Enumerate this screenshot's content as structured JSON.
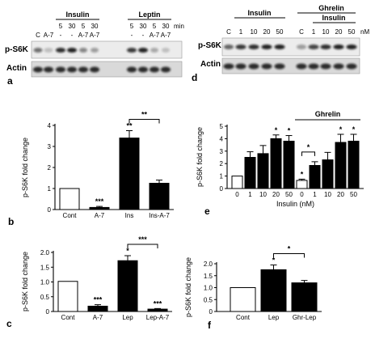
{
  "blots": {
    "a": {
      "panel_letter": "a",
      "groups": [
        {
          "label": "Insulin"
        },
        {
          "label": "Leptin"
        }
      ],
      "conc_row": [
        "5",
        "30",
        "5",
        "30",
        "5",
        "30",
        "5",
        "30"
      ],
      "treat_row": [
        "C",
        "A-7",
        "-",
        "-",
        "A-7",
        "A-7",
        "-",
        "-",
        "A-7",
        "A-7"
      ],
      "unit": "min",
      "rows": [
        "p-S6K",
        "Actin"
      ]
    },
    "d": {
      "panel_letter": "d",
      "groups": [
        {
          "label": "Insulin"
        },
        {
          "label": "Ghrelin"
        },
        {
          "label": "Insulin"
        }
      ],
      "conc_row": [
        "C",
        "1",
        "10",
        "20",
        "50",
        "C",
        "1",
        "10",
        "20",
        "50"
      ],
      "unit": "nM",
      "rows": [
        "p-S6K",
        "Actin"
      ]
    }
  },
  "chart_data": [
    {
      "panel": "b",
      "type": "bar",
      "ylabel": "p-S6K fold change",
      "ylim": [
        0,
        4
      ],
      "yticks": [
        "0",
        "1",
        "2",
        "3",
        "4"
      ],
      "categories": [
        "Cont",
        "A-7",
        "Ins",
        "Ins-A-7"
      ],
      "values": [
        1.0,
        0.1,
        3.4,
        1.25
      ],
      "errors": [
        0,
        0.05,
        0.35,
        0.15
      ],
      "fills": [
        "white",
        "black",
        "black",
        "black"
      ],
      "stars": [
        "",
        "***",
        "**",
        ""
      ],
      "bracket": {
        "from": 2,
        "to": 3,
        "label": "**"
      }
    },
    {
      "panel": "c",
      "type": "bar",
      "ylabel": "p-S6K fold change",
      "ylim": [
        0,
        2.0
      ],
      "yticks": [
        "0",
        "0.5",
        "1.0",
        "1.5",
        "2.0"
      ],
      "categories": [
        "Cont",
        "A-7",
        "Lep",
        "Lep-A-7"
      ],
      "values": [
        1.02,
        0.18,
        1.72,
        0.08
      ],
      "errors": [
        0,
        0.05,
        0.17,
        0.02
      ],
      "fills": [
        "white",
        "black",
        "black",
        "black"
      ],
      "stars": [
        "",
        "***",
        "*",
        "***"
      ],
      "bracket": {
        "from": 2,
        "to": 3,
        "label": "***"
      }
    },
    {
      "panel": "e",
      "type": "bar",
      "ylabel": "p-S6K fold change",
      "xlabel": "Insulin (nM)",
      "group_label": "Ghrelin",
      "ylim": [
        0,
        5
      ],
      "yticks": [
        "0",
        "1",
        "2",
        "3",
        "4",
        "5"
      ],
      "categories": [
        "0",
        "1",
        "10",
        "20",
        "50",
        "0",
        "1",
        "10",
        "20",
        "50"
      ],
      "values": [
        1.0,
        2.5,
        2.8,
        4.0,
        3.8,
        0.65,
        1.85,
        2.3,
        3.7,
        3.8
      ],
      "errors": [
        0,
        0.45,
        0.65,
        0.3,
        0.45,
        0.1,
        0.3,
        0.6,
        0.65,
        0.55
      ],
      "fills": [
        "white",
        "black",
        "black",
        "black",
        "black",
        "white",
        "black",
        "black",
        "black",
        "black"
      ],
      "stars": [
        "",
        "",
        "",
        "*",
        "*",
        "*",
        "",
        "",
        "*",
        "*"
      ],
      "bracket": {
        "from": 5,
        "to": 6,
        "label": "*"
      }
    },
    {
      "panel": "f",
      "type": "bar",
      "ylabel": "p-S6K fold change",
      "ylim": [
        0,
        2.0
      ],
      "yticks": [
        "0",
        "0.5",
        "1.0",
        "1.5",
        "2.0"
      ],
      "categories": [
        "Cont",
        "Lep",
        "Ghr-Lep"
      ],
      "values": [
        1.0,
        1.75,
        1.2
      ],
      "errors": [
        0,
        0.2,
        0.1
      ],
      "fills": [
        "white",
        "black",
        "black"
      ],
      "stars": [
        "",
        "*",
        ""
      ],
      "bracket": {
        "from": 1,
        "to": 2,
        "label": "*"
      }
    }
  ]
}
